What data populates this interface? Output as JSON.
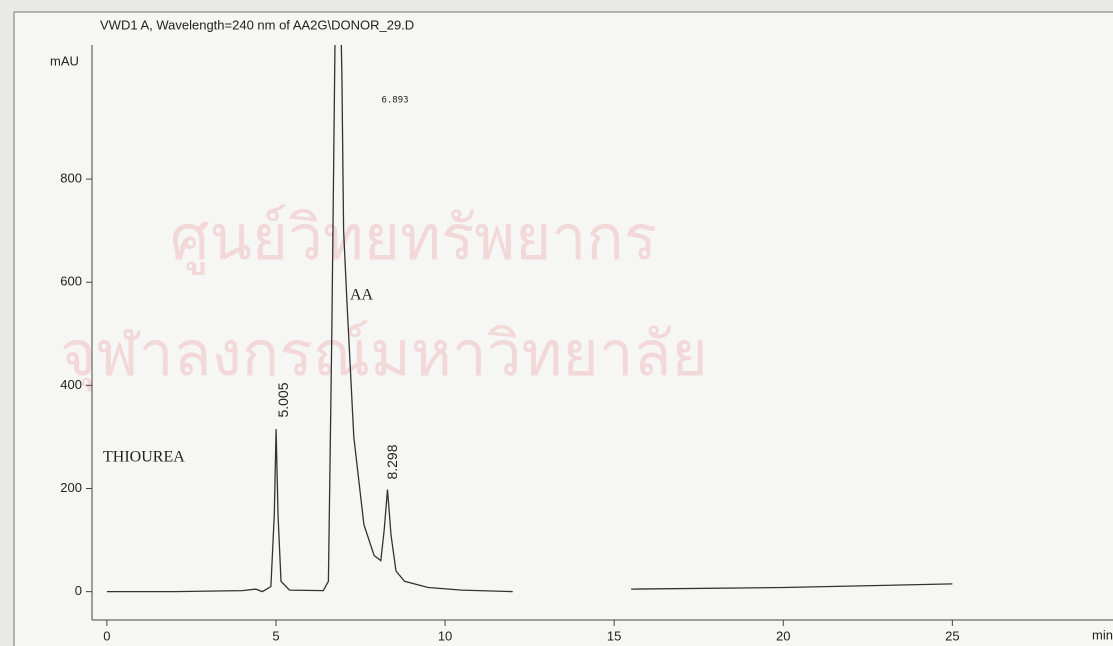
{
  "chart_data": {
    "type": "line",
    "title": "VWD1 A, Wavelength=240 nm of AA2G\\DONOR_29.D",
    "ylabel": "mAU",
    "xlabel": "min",
    "watermark": [
      "ศูนย์วิทยทรัพยากร",
      "จุฬาลงกรณ์มหาวิทยาลัย"
    ],
    "annotations": [
      "THIOUREA",
      "AA"
    ],
    "peaks": [
      5.005,
      6.893,
      8.298
    ],
    "x": [
      0,
      2,
      4,
      4.4,
      4.6,
      4.85,
      4.95,
      5.005,
      5.06,
      5.15,
      5.4,
      6.4,
      6.55,
      6.65,
      6.75,
      6.893,
      6.95,
      7.0,
      7.1,
      7.3,
      7.6,
      7.9,
      8.1,
      8.2,
      8.298,
      8.4,
      8.55,
      8.8,
      9.5,
      10.5,
      12,
      13,
      15.5,
      20,
      25
    ],
    "series": [
      {
        "color": "#333333",
        "values": [
          0,
          0,
          2,
          5,
          0,
          10,
          150,
          315,
          150,
          20,
          3,
          2,
          20,
          500,
          1100,
          1200,
          1000,
          700,
          560,
          300,
          130,
          70,
          60,
          120,
          198,
          110,
          40,
          20,
          8,
          3,
          0,
          null,
          5,
          8,
          15
        ]
      }
    ],
    "xlim": [
      -0.44,
      29.75
    ],
    "ylim": [
      -55,
      1060
    ],
    "xticks": [
      0,
      5,
      10,
      15,
      20,
      25
    ],
    "yticks": [
      0,
      200,
      400,
      600,
      800
    ]
  }
}
